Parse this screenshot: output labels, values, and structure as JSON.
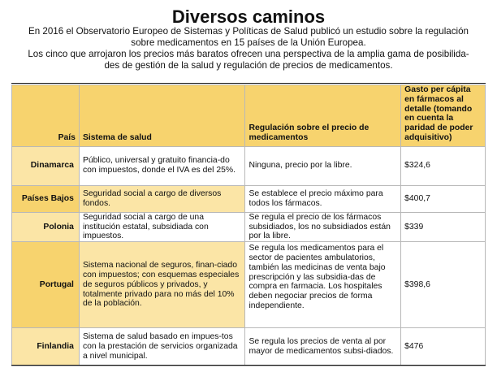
{
  "title": "Diversos caminos",
  "intro": [
    "En 2016 el Observatorio Europeo de Sistemas y Políticas de Salud publicó un estudio sobre la regulación",
    "sobre medicamentos en 15 países de la Unión Europea.",
    "Los cinco que arrojaron los precios más baratos ofrecen una perspectiva de la amplia gama de posibilida-",
    "des de gestión de la salud y regulación de precios de medicamentos."
  ],
  "table": {
    "headers": {
      "country": "País",
      "system": "Sistema de salud",
      "regulation": "Regulación sobre el precio de medicamentos",
      "spend": "Gasto per cápita en fármacos al detalle (tomando en cuenta la paridad de poder adquisitivo)"
    },
    "rows": [
      {
        "country": "Dinamarca",
        "system": "Público, universal y gratuito financia-do con impuestos, donde el IVA es del 25%.",
        "regulation": "Ninguna, precio por la libre.",
        "spend": "$324,6"
      },
      {
        "country": "Países Bajos",
        "system": "Seguridad social a cargo de diversos fondos.",
        "regulation": "Se establece el precio máximo para todos los fármacos.",
        "spend": "$400,7"
      },
      {
        "country": "Polonia",
        "system": "Seguridad social a cargo de una institución estatal, subsidiada con impuestos.",
        "regulation": "Se regula el precio de los fármacos subsidiados, los no subsidiados están por la libre.",
        "spend": "$339"
      },
      {
        "country": "Portugal",
        "system": "Sistema nacional de seguros, finan-ciado con impuestos; con esquemas especiales de seguros públicos y privados, y totalmente privado para no más del 10% de la población.",
        "regulation": "Se regula los medicamentos para el sector de pacientes ambulatorios, también las medicinas de venta bajo prescripción y las subsidia-das de compra en farmacia. Los hospitales deben negociar precios de forma independiente.",
        "spend": "$398,6"
      },
      {
        "country": "Finlandia",
        "system": "Sistema de salud basado en impues-tos con la prestación de servicios organizada a nivel municipal.",
        "regulation": "Se regula los precios de venta al por mayor de medicamentos subsi-diados.",
        "spend": "$476"
      }
    ]
  }
}
